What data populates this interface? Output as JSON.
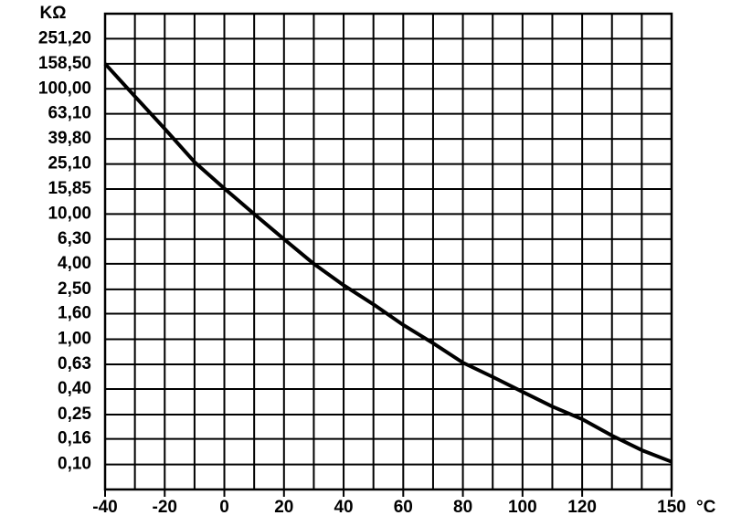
{
  "chart_data": {
    "type": "line",
    "y_label": "KΩ",
    "x_label": "°C",
    "x": [
      -40,
      -30,
      -20,
      -10,
      0,
      10,
      20,
      30,
      40,
      50,
      60,
      70,
      80,
      90,
      100,
      110,
      120,
      130,
      140,
      150
    ],
    "series": [
      {
        "color": "#000000",
        "values": [
          158.5,
          87,
          48,
          26,
          16,
          10,
          6.3,
          4.0,
          2.7,
          1.9,
          1.3,
          0.93,
          0.65,
          0.5,
          0.38,
          0.29,
          0.23,
          0.17,
          0.13,
          0.105
        ]
      }
    ],
    "xlim": [
      -40,
      150
    ],
    "xticks": [
      -40,
      -20,
      0,
      20,
      40,
      60,
      80,
      100,
      120,
      150
    ],
    "xgrid": [
      -30,
      -10,
      10,
      30,
      50,
      70,
      90,
      110,
      130,
      140
    ],
    "log_y": true,
    "ylim": [
      0.0631,
      398.1
    ],
    "yticks": [
      {
        "value": 0.1,
        "label": "0,10"
      },
      {
        "value": 0.16,
        "label": "0,16"
      },
      {
        "value": 0.25,
        "label": "0,25"
      },
      {
        "value": 0.4,
        "label": "0,40"
      },
      {
        "value": 0.63,
        "label": "0,63"
      },
      {
        "value": 1,
        "label": "1,00"
      },
      {
        "value": 1.6,
        "label": "1,60"
      },
      {
        "value": 2.5,
        "label": "2,50"
      },
      {
        "value": 4,
        "label": "4,00"
      },
      {
        "value": 6.3,
        "label": "6,30"
      },
      {
        "value": 10,
        "label": "10,00"
      },
      {
        "value": 15.85,
        "label": "15,85"
      },
      {
        "value": 25.1,
        "label": "25,10"
      },
      {
        "value": 39.8,
        "label": "39,80"
      },
      {
        "value": 63.1,
        "label": "63,10"
      },
      {
        "value": 100,
        "label": "100,00"
      },
      {
        "value": 158.5,
        "label": "158,50"
      },
      {
        "value": 251.2,
        "label": "251,20"
      }
    ],
    "grid": true
  }
}
